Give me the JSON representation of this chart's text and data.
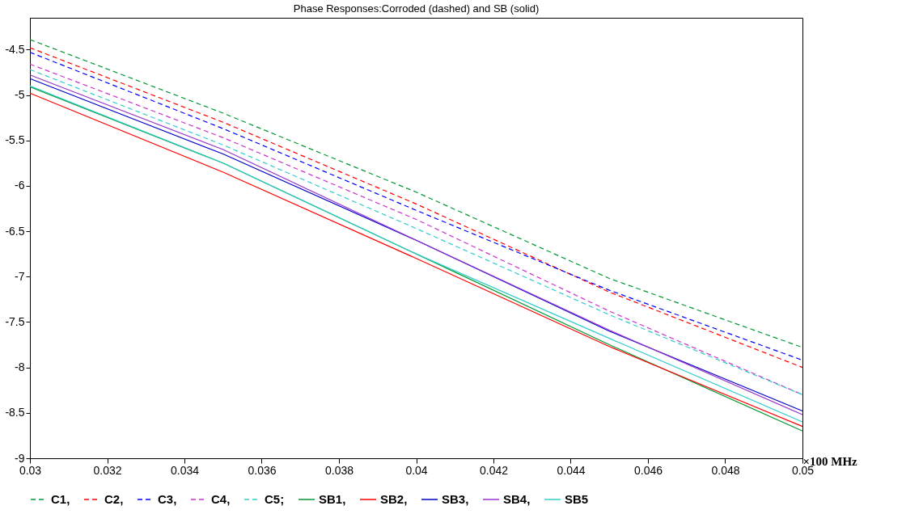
{
  "chart_data": {
    "type": "line",
    "title": "Phase Responses:Corroded (dashed) and SB (solid)",
    "xlabel": "×100 MHz",
    "x": [
      0.03,
      0.035,
      0.04,
      0.045,
      0.05
    ],
    "xlim": [
      0.03,
      0.05
    ],
    "xticks": [
      0.03,
      0.032,
      0.034,
      0.036,
      0.038,
      0.04,
      0.042,
      0.044,
      0.046,
      0.048,
      0.05
    ],
    "ylim": [
      -9,
      -4.15
    ],
    "yticks": [
      -9,
      -8.5,
      -8,
      -7.5,
      -7,
      -6.5,
      -6,
      -5.5,
      -5,
      -4.5
    ],
    "grid": false,
    "legend": "bottom",
    "series": [
      {
        "name": "C1,",
        "color": "#009933",
        "line_style": "dashed",
        "values": [
          -4.39,
          -5.2,
          -6.07,
          -7.02,
          -7.78
        ]
      },
      {
        "name": "C2,",
        "color": "#ff0000",
        "line_style": "dashed",
        "values": [
          -4.48,
          -5.3,
          -6.2,
          -7.17,
          -8.0
        ]
      },
      {
        "name": "C3,",
        "color": "#0000ff",
        "line_style": "dashed",
        "values": [
          -4.53,
          -5.37,
          -6.27,
          -7.15,
          -7.92
        ]
      },
      {
        "name": "C4,",
        "color": "#cc33cc",
        "line_style": "dashed",
        "values": [
          -4.66,
          -5.47,
          -6.37,
          -7.38,
          -8.3
        ]
      },
      {
        "name": "C5;",
        "color": "#33cccc",
        "line_style": "dashed",
        "values": [
          -4.72,
          -5.55,
          -6.47,
          -7.42,
          -8.3
        ]
      },
      {
        "name": "SB1,",
        "color": "#009933",
        "line_style": "solid",
        "values": [
          -4.91,
          -5.75,
          -6.75,
          -7.75,
          -8.7
        ]
      },
      {
        "name": "SB2,",
        "color": "#ff0000",
        "line_style": "solid",
        "values": [
          -4.98,
          -5.85,
          -6.8,
          -7.77,
          -8.65
        ]
      },
      {
        "name": "SB3,",
        "color": "#0000cc",
        "line_style": "solid",
        "values": [
          -4.82,
          -5.65,
          -6.6,
          -7.6,
          -8.48
        ]
      },
      {
        "name": "SB4,",
        "color": "#9933cc",
        "line_style": "solid",
        "values": [
          -4.78,
          -5.6,
          -6.6,
          -7.59,
          -8.52
        ]
      },
      {
        "name": "SB5",
        "color": "#33cccc",
        "line_style": "solid",
        "values": [
          -4.9,
          -5.75,
          -6.75,
          -7.68,
          -8.6
        ]
      }
    ]
  }
}
